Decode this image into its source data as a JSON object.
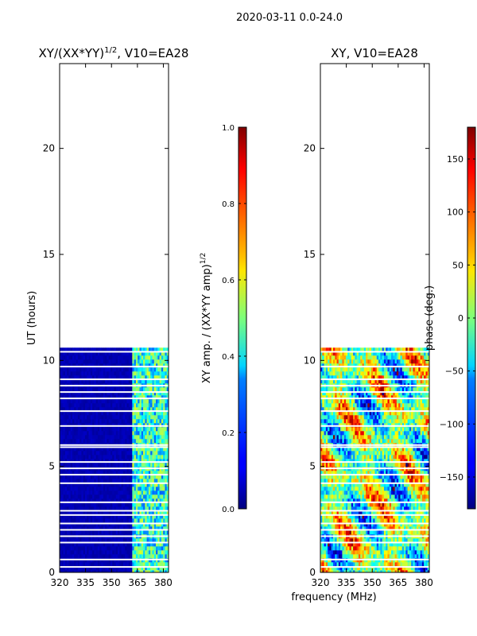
{
  "figure_title": "2020-03-11 0.0-24.0",
  "shared_xlabel": "frequency (MHz)",
  "chart_data": [
    {
      "type": "heatmap",
      "title_main": "XY/(XX*YY)",
      "title_sup": "1/2",
      "title_tail": ", V10=EA28",
      "ylabel": "UT (hours)",
      "xlim": [
        320,
        383
      ],
      "ylim": [
        0,
        24
      ],
      "xticks": [
        "320",
        "335",
        "350",
        "365",
        "380"
      ],
      "xtick_values": [
        320,
        335,
        350,
        365,
        380
      ],
      "yticks": [
        "0",
        "5",
        "10",
        "15",
        "20"
      ],
      "ytick_values": [
        0,
        5,
        10,
        15,
        20
      ],
      "data_ut_range": [
        0,
        10.6
      ],
      "bright_freq_band": [
        362,
        383
      ],
      "colormap": "jet",
      "colorbar": {
        "label_main": "XY amp. / (XX*YY amp)",
        "label_sup": "1/2",
        "range": [
          0.0,
          1.0
        ],
        "ticks": [
          "0.0",
          "0.2",
          "0.4",
          "0.6",
          "0.8",
          "1.0"
        ],
        "tick_values": [
          0.0,
          0.2,
          0.4,
          0.6,
          0.8,
          1.0
        ]
      }
    },
    {
      "type": "heatmap",
      "title": "XY, V10=EA28",
      "xlim": [
        320,
        383
      ],
      "ylim": [
        0,
        24
      ],
      "xticks": [
        "320",
        "335",
        "350",
        "365",
        "380"
      ],
      "xtick_values": [
        320,
        335,
        350,
        365,
        380
      ],
      "yticks": [
        "0",
        "5",
        "10",
        "15",
        "20"
      ],
      "ytick_values": [
        0,
        5,
        10,
        15,
        20
      ],
      "data_ut_range": [
        0,
        10.6
      ],
      "colormap": "jet",
      "colorbar": {
        "label": "phase (deg.)",
        "range": [
          -180,
          180
        ],
        "ticks": [
          "150",
          "100",
          "50",
          "0",
          "−50",
          "−100",
          "−150"
        ],
        "tick_values": [
          150,
          100,
          50,
          0,
          -50,
          -100,
          -150
        ]
      }
    }
  ],
  "gap_rows_ut": [
    10.4,
    9.7,
    9.1,
    8.8,
    8.5,
    8.2,
    7.6,
    6.9,
    6.0,
    5.9,
    5.2,
    4.9,
    4.6,
    4.2,
    3.3,
    2.9,
    2.7,
    2.3,
    2.0,
    1.7,
    1.4,
    0.6,
    0.25
  ]
}
